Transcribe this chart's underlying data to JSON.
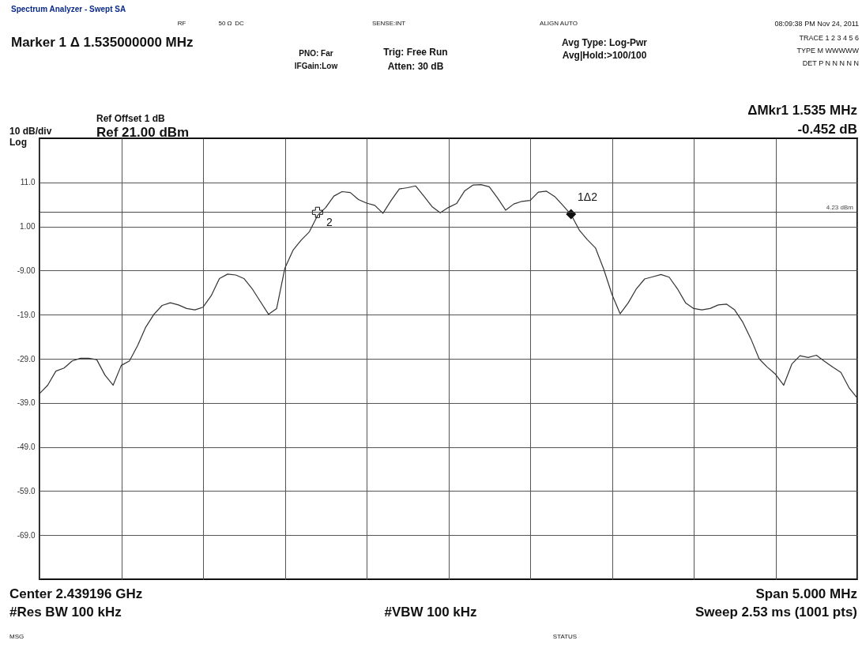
{
  "chart_data": {
    "type": "line",
    "title": "Spectrum Analyzer - Swept SA",
    "categories": [
      null,
      null,
      null,
      null,
      null,
      null,
      null,
      null,
      null,
      null,
      null,
      null,
      null,
      null,
      null,
      null,
      null,
      null,
      null,
      null,
      null,
      null,
      null,
      null,
      null,
      null,
      null,
      null,
      null,
      null,
      null,
      null,
      null,
      null,
      null,
      null,
      null,
      null,
      null,
      null,
      null,
      null,
      null,
      null,
      null,
      null,
      null,
      null,
      null,
      null,
      null,
      null,
      null,
      null,
      null,
      null,
      null,
      null,
      null,
      null,
      null,
      null,
      null,
      null,
      null,
      null,
      null,
      null,
      null,
      null,
      null,
      null,
      null,
      null,
      null,
      null,
      null,
      null,
      null,
      null,
      null,
      null,
      null,
      null,
      null,
      null,
      null,
      null,
      null,
      null,
      null,
      null,
      null,
      null,
      null,
      null,
      null,
      null,
      null,
      null,
      null
    ],
    "series": [
      {
        "color": "#333333",
        "values": [
          -36.9,
          -35.0,
          -31.8,
          -31.1,
          -29.5,
          -28.9,
          -28.9,
          -29.2,
          -32.7,
          -35.0,
          -30.5,
          -29.5,
          -26.0,
          -21.8,
          -18.9,
          -16.9,
          -16.3,
          -16.8,
          -17.6,
          -17.9,
          -17.3,
          -14.7,
          -10.8,
          -9.8,
          -10.0,
          -10.8,
          -13.1,
          -16.0,
          -18.9,
          -17.6,
          -8.5,
          -4.4,
          -2.1,
          -0.2,
          3.5,
          5.3,
          7.9,
          8.9,
          8.7,
          7.1,
          6.3,
          5.8,
          4.0,
          6.9,
          9.5,
          9.8,
          10.2,
          7.9,
          5.5,
          4.1,
          5.3,
          6.2,
          9.1,
          10.4,
          10.5,
          10.0,
          7.5,
          4.7,
          6.1,
          6.7,
          6.9,
          8.8,
          9.0,
          7.8,
          5.8,
          3.7,
          0.2,
          -2.0,
          -3.9,
          -8.7,
          -14.4,
          -18.8,
          -16.3,
          -13.1,
          -10.9,
          -10.4,
          -9.9,
          -10.5,
          -13.1,
          -16.3,
          -17.6,
          -17.9,
          -17.6,
          -16.8,
          -16.6,
          -17.9,
          -20.7,
          -24.5,
          -29.0,
          -30.9,
          -32.5,
          -35.0,
          -30.2,
          -28.3,
          -28.7,
          -28.2,
          -29.6,
          -30.9,
          -32.1,
          -35.6,
          -37.9
        ]
      },
      {
        "type": "scatter",
        "marker": "cross",
        "color": "#111111",
        "values": [
          null,
          null,
          null,
          null,
          null,
          null,
          null,
          null,
          null,
          null,
          null,
          null,
          null,
          null,
          null,
          null,
          null,
          null,
          null,
          null,
          null,
          null,
          null,
          null,
          null,
          null,
          null,
          null,
          null,
          null,
          null,
          null,
          null,
          null,
          4.2,
          null,
          null,
          null,
          null,
          null,
          null,
          null,
          null,
          null,
          null,
          null,
          null,
          null,
          null,
          null,
          null,
          null,
          null,
          null,
          null,
          null,
          null,
          null,
          null,
          null,
          null,
          null,
          null,
          null,
          null,
          null,
          null,
          null,
          null,
          null,
          null,
          null,
          null,
          null,
          null,
          null,
          null,
          null,
          null,
          null,
          null,
          null,
          null,
          null,
          null,
          null,
          null,
          null,
          null,
          null,
          null,
          null,
          null,
          null,
          null,
          null,
          null,
          null,
          null,
          null,
          null
        ]
      },
      {
        "type": "scatter",
        "marker": "diamond",
        "color": "#111111",
        "values": [
          null,
          null,
          null,
          null,
          null,
          null,
          null,
          null,
          null,
          null,
          null,
          null,
          null,
          null,
          null,
          null,
          null,
          null,
          null,
          null,
          null,
          null,
          null,
          null,
          null,
          null,
          null,
          null,
          null,
          null,
          null,
          null,
          null,
          null,
          null,
          null,
          null,
          null,
          null,
          null,
          null,
          null,
          null,
          null,
          null,
          null,
          null,
          null,
          null,
          null,
          null,
          null,
          null,
          null,
          null,
          null,
          null,
          null,
          null,
          null,
          null,
          null,
          null,
          null,
          null,
          3.8,
          null,
          null,
          null,
          null,
          null,
          null,
          null,
          null,
          null,
          null,
          null,
          null,
          null,
          null,
          null,
          null,
          null,
          null,
          null,
          null,
          null,
          null,
          null,
          null,
          null,
          null,
          null,
          null,
          null,
          null,
          null,
          null,
          null,
          null,
          null
        ]
      }
    ],
    "ylim": [
      -79,
      21
    ],
    "yticks": [
      {
        "value": 11,
        "label": "11.0"
      },
      {
        "value": 1,
        "label": "1.00"
      },
      {
        "value": -9,
        "label": "-9.00"
      },
      {
        "value": -19,
        "label": "-19.0"
      },
      {
        "value": -29,
        "label": "-29.0"
      },
      {
        "value": -39,
        "label": "-39.0"
      },
      {
        "value": -49,
        "label": "-49.0"
      },
      {
        "value": -59,
        "label": "-59.0"
      },
      {
        "value": -69,
        "label": "-69.0"
      }
    ],
    "grid": true,
    "ref_lines": [
      {
        "axis": "y",
        "value": 4.23,
        "label": "4.23 dBm",
        "color": "#444444"
      }
    ],
    "annotations": [
      "2",
      "1Δ2",
      "RF",
      "50 Ω",
      "DC",
      "SENSE:INT",
      "ALIGN AUTO",
      "08:09:38 PM Nov 24, 2011",
      "Marker 1 Δ  1.535000000 MHz",
      "PNO: Far",
      "IFGain:Low",
      "Trig: Free Run",
      "Atten: 30 dB",
      "Avg Type: Log-Pwr",
      "Avg|Hold:>100/100",
      "TRACE 1 2 3 4 5 6",
      "TYPE M WWWWW",
      "DET P N N N N N",
      "Ref Offset 1 dB",
      "10 dB/div",
      "Ref 21.00 dBm",
      "Log",
      "ΔMkr1 1.535 MHz",
      "-0.452 dB",
      "Center 2.439196 GHz",
      "#Res BW 100 kHz",
      "#VBW 100 kHz",
      "Span 5.000 MHz",
      "Sweep  2.53 ms (1001 pts)",
      "MSG",
      "STATUS"
    ]
  }
}
